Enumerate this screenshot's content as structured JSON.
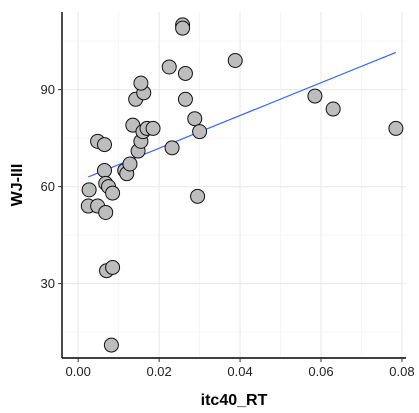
{
  "chart_data": {
    "type": "scatter",
    "xlabel": "itc40_RT",
    "ylabel": "WJ-III",
    "xlim": [
      -0.004,
      0.081
    ],
    "ylim": [
      7,
      114
    ],
    "x_ticks": [
      0.0,
      0.02,
      0.04,
      0.06,
      0.08
    ],
    "x_tick_labels": [
      "0.00",
      "0.02",
      "0.04",
      "0.06",
      "0.08"
    ],
    "y_ticks": [
      30,
      60,
      90
    ],
    "y_tick_labels": [
      "30",
      "60",
      "90"
    ],
    "grid": true,
    "legend": "none",
    "point_color": "#bdbdbd",
    "point_stroke": "#111111",
    "trend_color": "#3366ff",
    "points": [
      {
        "x": 0.0027,
        "y": 59
      },
      {
        "x": 0.0025,
        "y": 54
      },
      {
        "x": 0.0048,
        "y": 54
      },
      {
        "x": 0.0048,
        "y": 74
      },
      {
        "x": 0.0065,
        "y": 73
      },
      {
        "x": 0.0065,
        "y": 65
      },
      {
        "x": 0.0068,
        "y": 61
      },
      {
        "x": 0.0068,
        "y": 52
      },
      {
        "x": 0.0075,
        "y": 60
      },
      {
        "x": 0.0085,
        "y": 58
      },
      {
        "x": 0.007,
        "y": 34
      },
      {
        "x": 0.0085,
        "y": 35
      },
      {
        "x": 0.0082,
        "y": 11
      },
      {
        "x": 0.0115,
        "y": 65
      },
      {
        "x": 0.012,
        "y": 64
      },
      {
        "x": 0.0128,
        "y": 67
      },
      {
        "x": 0.0135,
        "y": 79
      },
      {
        "x": 0.0142,
        "y": 87
      },
      {
        "x": 0.0148,
        "y": 71
      },
      {
        "x": 0.0155,
        "y": 74
      },
      {
        "x": 0.016,
        "y": 77
      },
      {
        "x": 0.0162,
        "y": 89
      },
      {
        "x": 0.0155,
        "y": 92
      },
      {
        "x": 0.017,
        "y": 78
      },
      {
        "x": 0.0185,
        "y": 78
      },
      {
        "x": 0.0225,
        "y": 97
      },
      {
        "x": 0.0232,
        "y": 72
      },
      {
        "x": 0.0258,
        "y": 110
      },
      {
        "x": 0.0258,
        "y": 109
      },
      {
        "x": 0.0265,
        "y": 95
      },
      {
        "x": 0.0265,
        "y": 87
      },
      {
        "x": 0.0288,
        "y": 81
      },
      {
        "x": 0.03,
        "y": 77
      },
      {
        "x": 0.0295,
        "y": 57
      },
      {
        "x": 0.0388,
        "y": 99
      },
      {
        "x": 0.0585,
        "y": 88
      },
      {
        "x": 0.063,
        "y": 84
      },
      {
        "x": 0.0785,
        "y": 78
      }
    ],
    "trend_line": {
      "x": [
        0.0025,
        0.0785
      ],
      "y": [
        63,
        101.5
      ]
    }
  }
}
